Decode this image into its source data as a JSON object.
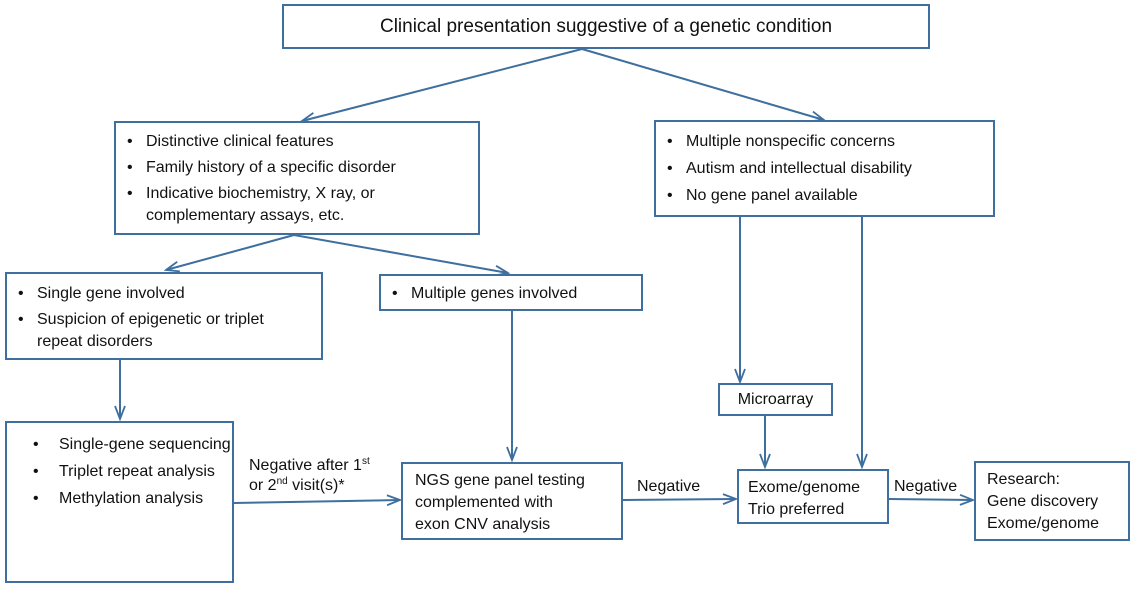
{
  "nodes": {
    "clinical": {
      "text": "Clinical presentation suggestive of a genetic condition"
    },
    "distinctive": {
      "items": [
        "Distinctive clinical features",
        "Family history of a specific disorder",
        "Indicative biochemistry, X ray,  or complementary assays, etc."
      ]
    },
    "nonspecific": {
      "items": [
        "Multiple nonspecific concerns",
        "Autism and intellectual disability",
        "No gene panel available"
      ]
    },
    "single_gene": {
      "items": [
        "Single gene involved",
        "Suspicion of epigenetic or triplet repeat disorders"
      ]
    },
    "multiple_genes": {
      "items": [
        "Multiple genes involved"
      ]
    },
    "single_tests": {
      "items": [
        "Single-gene sequencing",
        "Triplet repeat analysis",
        "Methylation analysis"
      ]
    },
    "microarray": {
      "text": "Microarray"
    },
    "ngs": {
      "lines": [
        "NGS gene panel testing",
        "complemented with",
        "exon CNV analysis"
      ]
    },
    "exome": {
      "lines": [
        "Exome/genome",
        "Trio preferred"
      ]
    },
    "research": {
      "lines": [
        "Research:",
        "Gene discovery",
        "Exome/genome"
      ]
    }
  },
  "edge_labels": {
    "negative_visit": {
      "line1": "Negative after 1",
      "sup1": "st",
      "line2_prefix": "or 2",
      "sup2": "nd",
      "line2_suffix": " visit(s)*"
    },
    "negative_ngs": "Negative",
    "negative_exome": "Negative"
  },
  "colors": {
    "box_border": "#3e6f9e",
    "arrow": "#3e6f9e"
  }
}
